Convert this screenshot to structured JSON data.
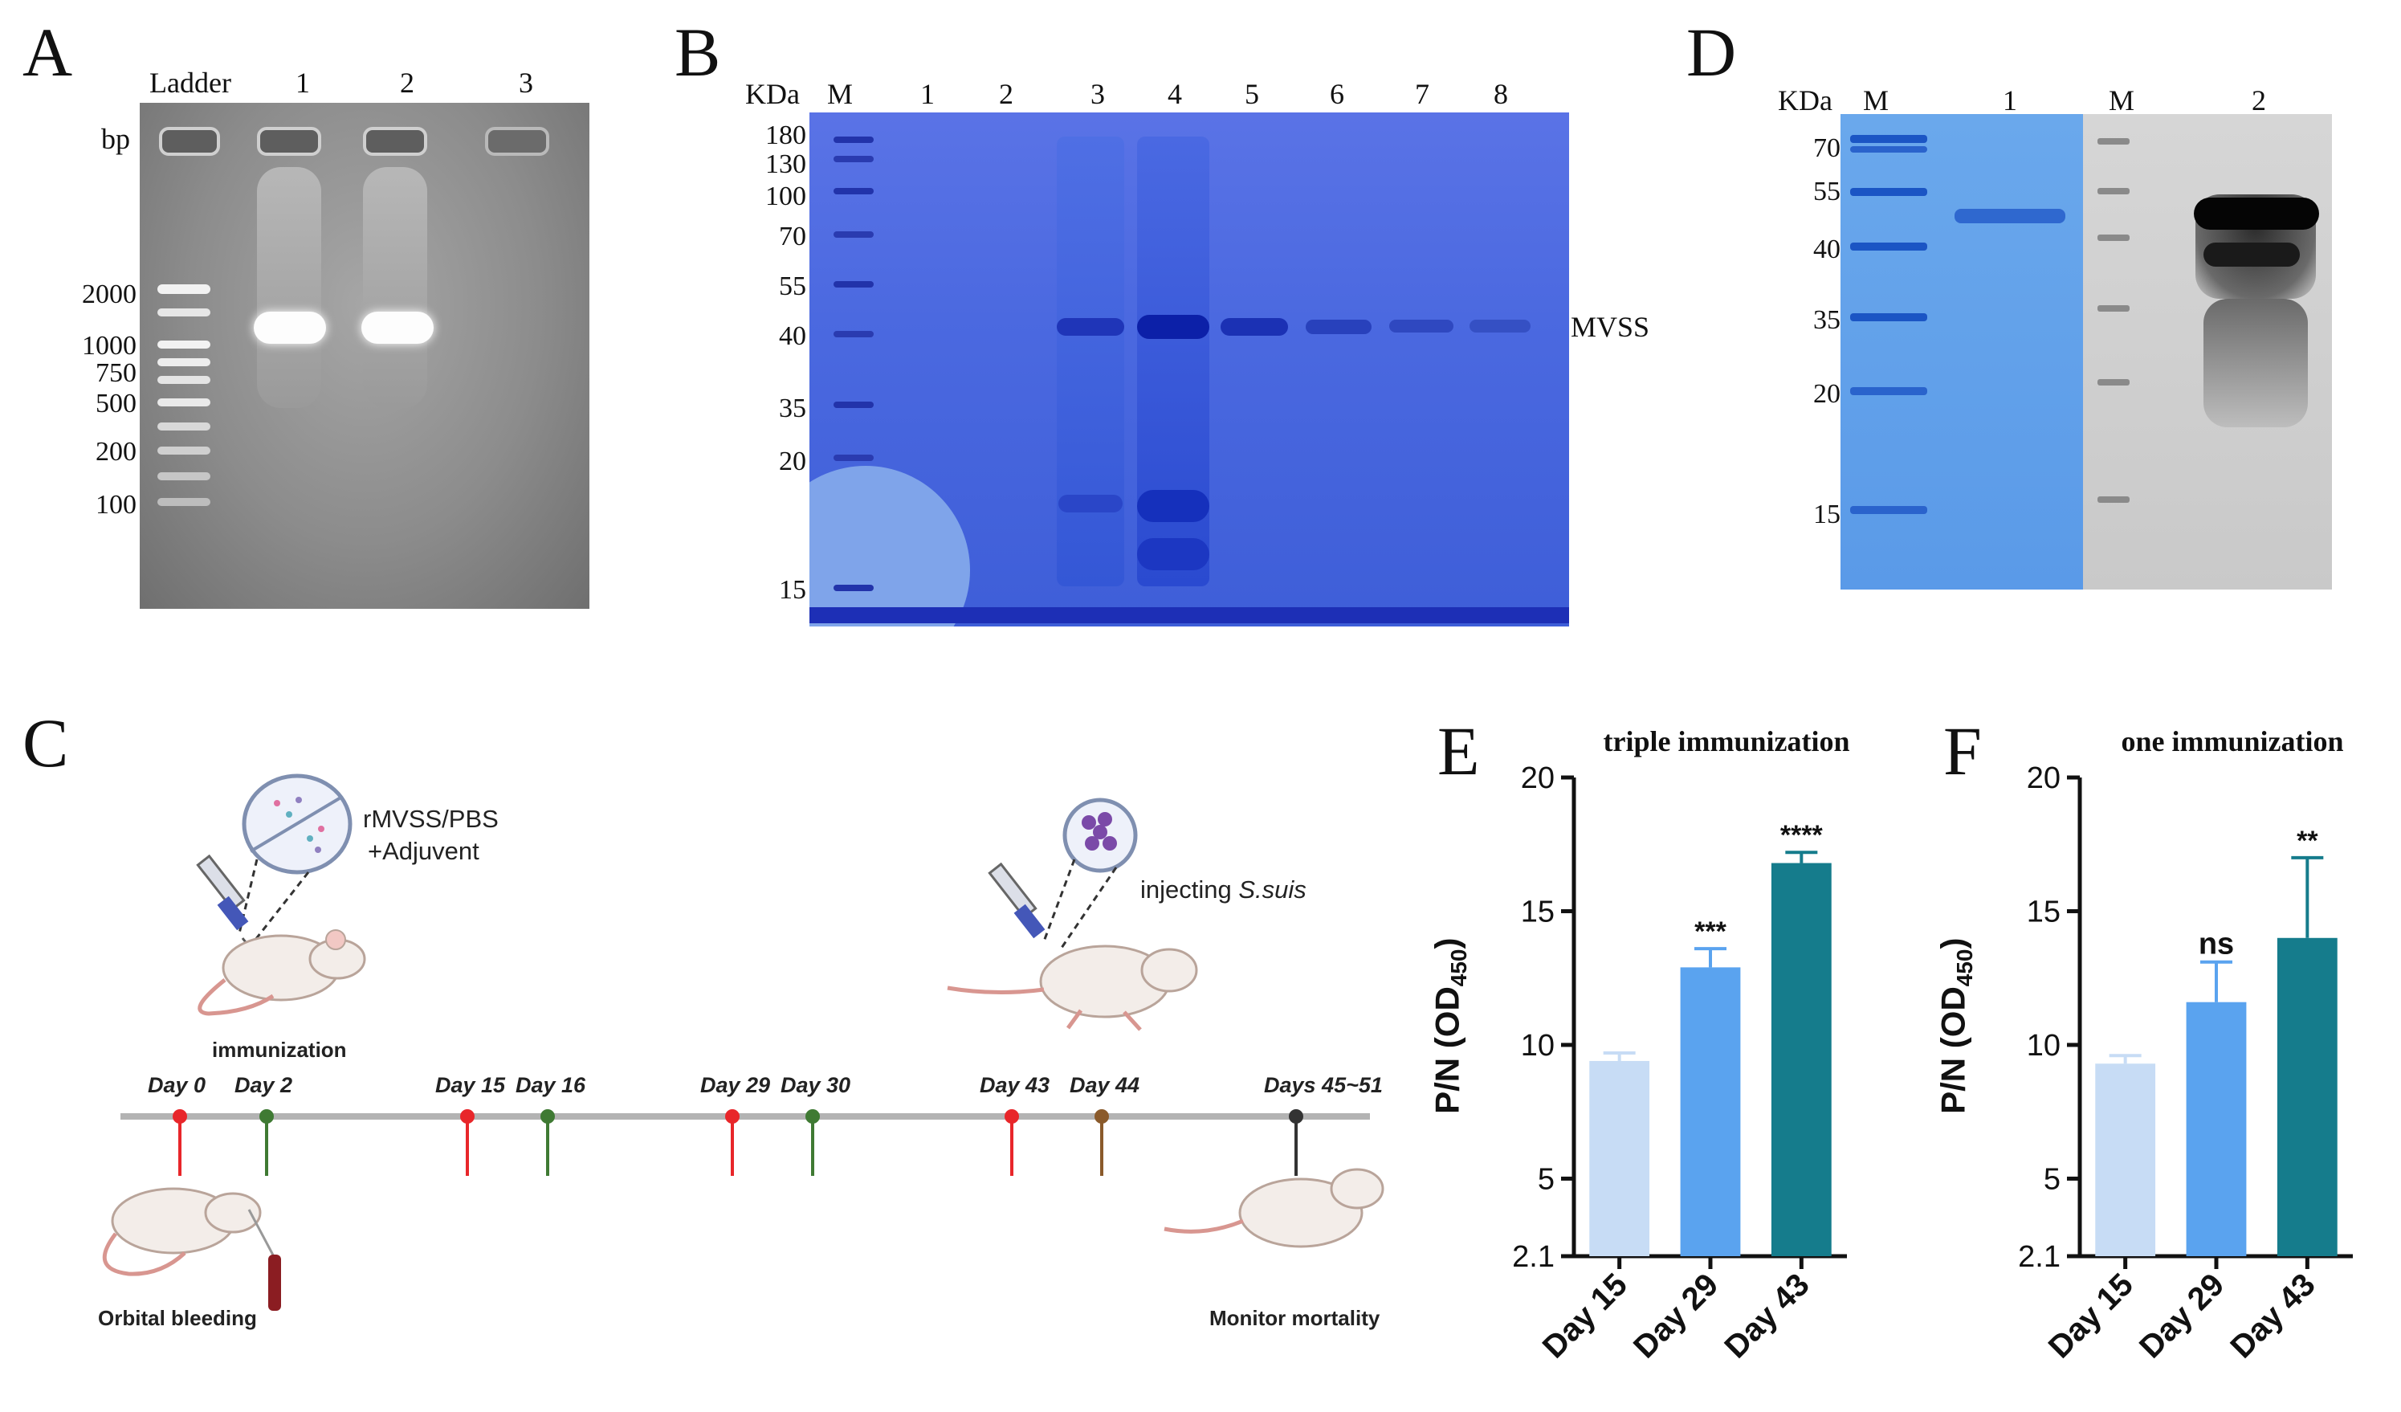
{
  "panels": {
    "A": {
      "letter": "A",
      "bp_label": "bp",
      "lanes": [
        "Ladder",
        "1",
        "2",
        "3"
      ],
      "markers": [
        "2000",
        "1000",
        "750",
        "500",
        "200",
        "100"
      ]
    },
    "B": {
      "letter": "B",
      "unit": "KDa",
      "lanes": [
        "M",
        "1",
        "2",
        "3",
        "4",
        "5",
        "6",
        "7",
        "8"
      ],
      "markers": [
        "180",
        "130",
        "100",
        "70",
        "55",
        "40",
        "35",
        "20",
        "15"
      ],
      "band_label": "MVSS"
    },
    "C": {
      "letter": "C",
      "antigen_label_1": "rMVSS/PBS",
      "antigen_label_2": "+Adjuvent",
      "immunization_label": "immunization",
      "injecting_prefix": "injecting ",
      "injecting_species": "S.suis",
      "bleeding_label": "Orbital bleeding",
      "mortality_label": "Monitor mortality",
      "timeline": [
        {
          "label": "Day 0",
          "color": "#e8262a"
        },
        {
          "label": "Day 2",
          "color": "#3f7a33"
        },
        {
          "label": "Day 15",
          "color": "#e8262a"
        },
        {
          "label": "Day 16",
          "color": "#3f7a33"
        },
        {
          "label": "Day 29",
          "color": "#e8262a"
        },
        {
          "label": "Day 30",
          "color": "#3f7a33"
        },
        {
          "label": "Day 43",
          "color": "#e8262a"
        },
        {
          "label": "Day 44",
          "color": "#8a5a2b"
        },
        {
          "label": "Days 45~51",
          "color": "#333333"
        }
      ]
    },
    "D": {
      "letter": "D",
      "unit": "KDa",
      "lanes": [
        "M",
        "1",
        "M",
        "2"
      ],
      "markers": [
        "70",
        "55",
        "40",
        "35",
        "20",
        "15"
      ]
    }
  },
  "chart_data": [
    {
      "panel": "E",
      "type": "bar",
      "title": "triple immunization",
      "xlabel": "",
      "ylabel_main": "P/N (OD",
      "ylabel_sub": "450",
      "ylabel_end": ")",
      "ylim": [
        2.1,
        20
      ],
      "yticks": [
        "2.1",
        "5",
        "10",
        "15",
        "20"
      ],
      "ytick_values": [
        2.1,
        5,
        10,
        15,
        20
      ],
      "categories": [
        "Day 15",
        "Day 29",
        "Day 43"
      ],
      "values": [
        9.4,
        12.9,
        16.8
      ],
      "errors": [
        0.3,
        0.7,
        0.4
      ],
      "significance": [
        "",
        "***",
        "****"
      ],
      "colors": [
        "#c7dcf5",
        "#5aa3ef",
        "#157c8c"
      ]
    },
    {
      "panel": "F",
      "type": "bar",
      "title": "one immunization",
      "xlabel": "",
      "ylabel_main": "P/N (OD",
      "ylabel_sub": "450",
      "ylabel_end": ")",
      "ylim": [
        2.1,
        20
      ],
      "yticks": [
        "2.1",
        "5",
        "10",
        "15",
        "20"
      ],
      "ytick_values": [
        2.1,
        5,
        10,
        15,
        20
      ],
      "categories": [
        "Day 15",
        "Day 29",
        "Day 43"
      ],
      "values": [
        9.3,
        11.6,
        14.0
      ],
      "errors": [
        0.3,
        1.5,
        3.0
      ],
      "significance": [
        "",
        "ns",
        "**"
      ],
      "colors": [
        "#c7dcf5",
        "#5aa3ef",
        "#157c8c"
      ]
    }
  ]
}
